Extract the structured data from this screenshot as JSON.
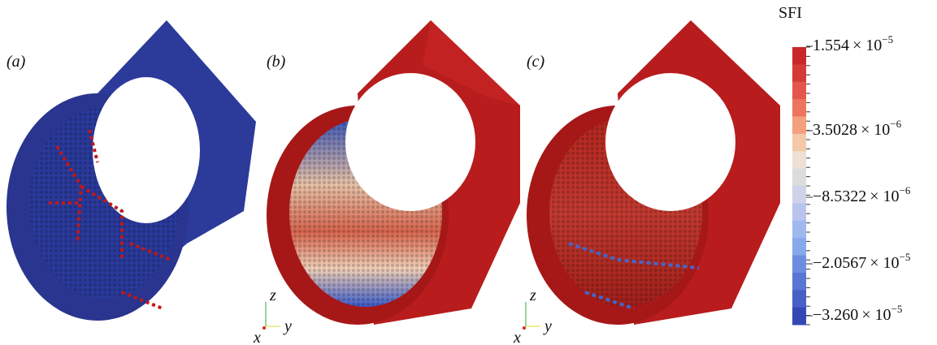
{
  "panels": [
    {
      "label": "(a)"
    },
    {
      "label": "(b)"
    },
    {
      "label": "(c)"
    }
  ],
  "axes_triad": {
    "z": "z",
    "y": "y",
    "x": "x"
  },
  "colorbar": {
    "title": "SFI",
    "labels": [
      {
        "mantissa": "1.554",
        "times": "× 10",
        "exponent": "−5"
      },
      {
        "mantissa": "3.5028",
        "times": "× 10",
        "exponent": "−6"
      },
      {
        "mantissa": "−8.5322",
        "times": "× 10",
        "exponent": "−6"
      },
      {
        "mantissa": "−2.0567",
        "times": "× 10",
        "exponent": "−5"
      },
      {
        "mantissa": "−3.260",
        "times": "× 10",
        "exponent": "−5"
      }
    ]
  }
}
